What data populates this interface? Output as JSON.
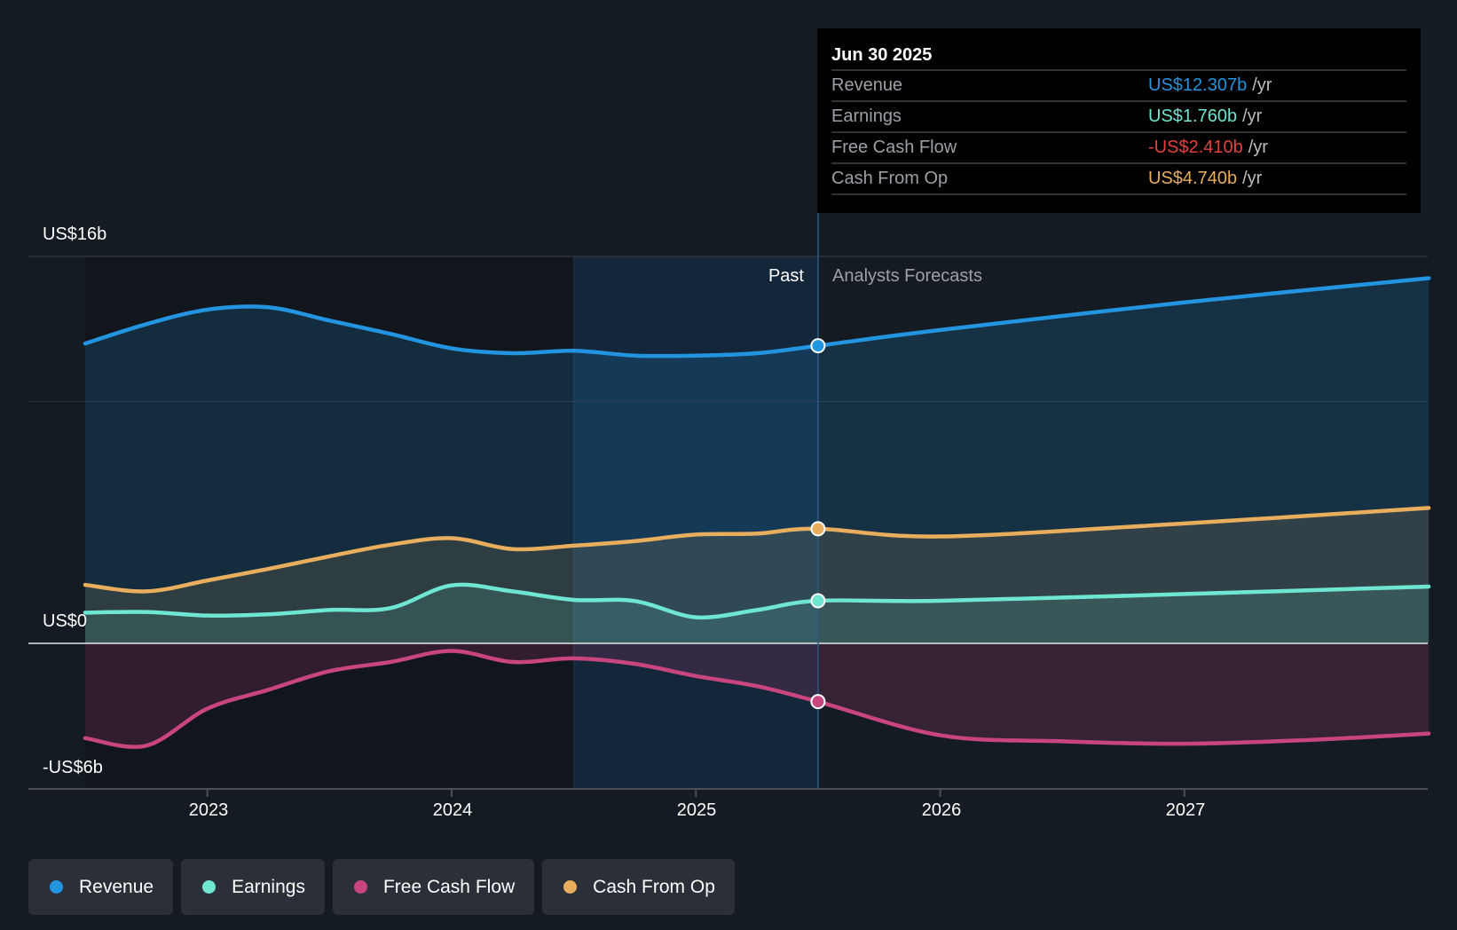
{
  "chart_data": {
    "type": "area",
    "y_axis": {
      "ticks": [
        {
          "value": 16,
          "label": "US$16b"
        },
        {
          "value": 0,
          "label": "US$0"
        },
        {
          "value": -6,
          "label": "-US$6b"
        }
      ],
      "range": [
        -6,
        16
      ],
      "unit": "US$ billions"
    },
    "x_axis": {
      "ticks": [
        {
          "value": 2023,
          "label": "2023"
        },
        {
          "value": 2024,
          "label": "2024"
        },
        {
          "value": 2025,
          "label": "2025"
        },
        {
          "value": 2026,
          "label": "2026"
        },
        {
          "value": 2027,
          "label": "2027"
        }
      ],
      "range": [
        2022.5,
        2028
      ]
    },
    "past_label": "Past",
    "forecast_label": "Analysts Forecasts",
    "past_end": 2025.5,
    "highlight_start": 2024.5,
    "series": [
      {
        "name": "Revenue",
        "color": "#2394df",
        "x": [
          2022.5,
          2022.75,
          2023,
          2023.25,
          2023.5,
          2023.75,
          2024,
          2024.25,
          2024.5,
          2024.75,
          2025,
          2025.25,
          2025.5,
          2026,
          2027,
          2028
        ],
        "values": [
          12.4,
          13.2,
          13.8,
          13.9,
          13.35,
          12.8,
          12.2,
          12.0,
          12.1,
          11.9,
          11.9,
          12.0,
          12.307,
          12.96,
          14.1,
          15.1
        ]
      },
      {
        "name": "Cash From Op",
        "color": "#e8ae5e",
        "x": [
          2022.5,
          2022.75,
          2023,
          2023.25,
          2023.5,
          2023.75,
          2024,
          2024.25,
          2024.5,
          2024.75,
          2025,
          2025.25,
          2025.5,
          2026,
          2027,
          2028
        ],
        "values": [
          2.42,
          2.15,
          2.6,
          3.08,
          3.6,
          4.08,
          4.35,
          3.9,
          4.04,
          4.23,
          4.5,
          4.54,
          4.74,
          4.42,
          4.96,
          5.6
        ]
      },
      {
        "name": "Earnings",
        "color": "#6ee6d2",
        "x": [
          2022.5,
          2022.75,
          2023,
          2023.25,
          2023.5,
          2023.75,
          2024,
          2024.25,
          2024.5,
          2024.75,
          2025,
          2025.25,
          2025.5,
          2026,
          2027,
          2028
        ],
        "values": [
          1.27,
          1.3,
          1.15,
          1.2,
          1.38,
          1.46,
          2.4,
          2.15,
          1.8,
          1.75,
          1.08,
          1.38,
          1.76,
          1.76,
          2.04,
          2.35
        ]
      },
      {
        "name": "Free Cash Flow",
        "color": "#c9457f",
        "x": [
          2022.5,
          2022.75,
          2023,
          2023.25,
          2023.5,
          2023.75,
          2024,
          2024.25,
          2024.5,
          2024.75,
          2025,
          2025.25,
          2025.5,
          2026,
          2026.5,
          2027,
          2027.5,
          2028
        ],
        "values": [
          -3.92,
          -4.23,
          -2.7,
          -1.92,
          -1.15,
          -0.77,
          -0.31,
          -0.77,
          -0.62,
          -0.85,
          -1.35,
          -1.77,
          -2.41,
          -3.8,
          -4.05,
          -4.15,
          -4.0,
          -3.73
        ]
      }
    ]
  },
  "tooltip": {
    "date": "Jun 30 2025",
    "unit": "/yr",
    "rows": [
      {
        "label": "Revenue",
        "value": "US$12.307b",
        "color": "#2394df"
      },
      {
        "label": "Earnings",
        "value": "US$1.760b",
        "color": "#6ee6d2"
      },
      {
        "label": "Free Cash Flow",
        "value": "-US$2.410b",
        "color": "#e5413b"
      },
      {
        "label": "Cash From Op",
        "value": "US$4.740b",
        "color": "#e8ae5e"
      }
    ]
  },
  "legend": [
    {
      "label": "Revenue",
      "color": "#2394df"
    },
    {
      "label": "Earnings",
      "color": "#6ee6d2"
    },
    {
      "label": "Free Cash Flow",
      "color": "#c9457f"
    },
    {
      "label": "Cash From Op",
      "color": "#e8ae5e"
    }
  ]
}
